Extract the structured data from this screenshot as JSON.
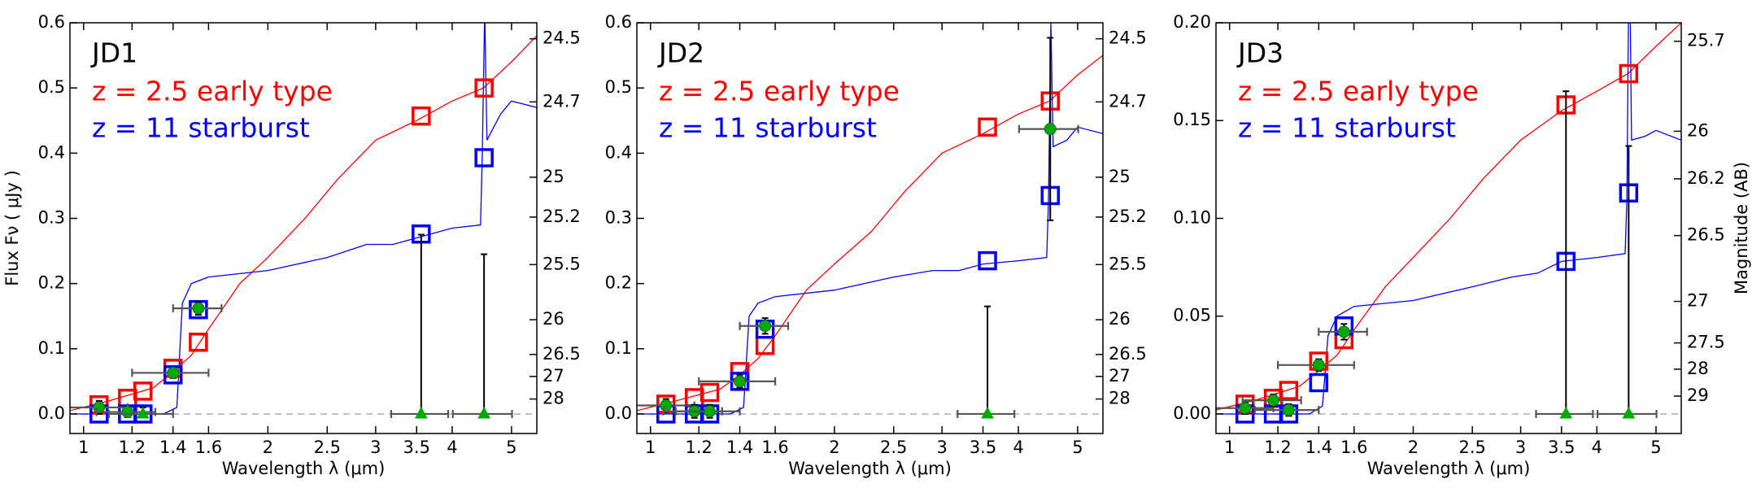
{
  "chart_data": [
    {
      "type": "scatter",
      "label": "JD1",
      "xscale": "log",
      "xlim": [
        0.95,
        5.5
      ],
      "ylim": [
        -0.03,
        0.6
      ],
      "xticks": [
        1,
        1.2,
        1.4,
        1.6,
        2,
        2.5,
        3,
        3.5,
        4,
        5
      ],
      "yticks": [
        {
          "value": 0,
          "label": "0.0"
        },
        0.1,
        0.2,
        0.3,
        0.4,
        0.5,
        0.6
      ],
      "y2ticks": [
        24.5,
        24.7,
        25,
        25.2,
        25.5,
        26,
        26.5,
        27,
        28
      ],
      "ylabel": "Flux  Fν ( μJy )",
      "xlabel": "Wavelength  λ (μm)",
      "zero_line": true,
      "x": [
        1.06,
        1.18,
        1.25,
        1.4,
        1.54,
        3.56,
        4.51
      ],
      "series": [
        {
          "name": "z = 2.5 early type",
          "color": "#ff0000",
          "values": [
            0.014,
            0.024,
            0.035,
            0.07,
            0.11,
            0.457,
            0.5
          ],
          "spectrum": {
            "x": [
              0.95,
              1.1,
              1.3,
              1.4,
              1.5,
              1.6,
              1.8,
              2.0,
              2.3,
              2.6,
              3.0,
              3.5,
              4.0,
              4.5,
              5.0,
              5.5
            ],
            "values": [
              0.005,
              0.02,
              0.04,
              0.065,
              0.09,
              0.13,
              0.2,
              0.24,
              0.3,
              0.36,
              0.42,
              0.45,
              0.48,
              0.5,
              0.54,
              0.58
            ]
          }
        },
        {
          "name": "z = 11 starburst",
          "color": "#0000ff",
          "values": [
            0.0,
            0.0,
            0.0,
            0.06,
            0.16,
            0.276,
            0.393
          ],
          "spectrum": {
            "x": [
              0.95,
              1.35,
              1.42,
              1.45,
              1.5,
              1.6,
              2.0,
              2.5,
              2.9,
              3.2,
              3.5,
              4.0,
              4.45,
              4.48,
              4.52,
              4.56,
              4.8,
              5.0,
              5.5
            ],
            "values": [
              0,
              0,
              0.01,
              0.17,
              0.2,
              0.21,
              0.22,
              0.24,
              0.26,
              0.26,
              0.27,
              0.285,
              0.29,
              0.4,
              0.62,
              0.42,
              0.46,
              0.48,
              0.47
            ]
          }
        }
      ],
      "observed": {
        "color": "#00aa00",
        "values": [
          0.01,
          0.003,
          0,
          0.063,
          0.162,
          0,
          0
        ],
        "yerr": [
          0.01,
          0.008,
          0.01,
          0.008,
          0.01,
          0.275,
          0.245
        ],
        "xerr": [
          0.12,
          0.13,
          0.15,
          0.2,
          0.14,
          0.38,
          0.5
        ],
        "markers": [
          "circle",
          "circle",
          "triangle",
          "circle",
          "circle",
          "triangle",
          "triangle"
        ]
      }
    },
    {
      "type": "scatter",
      "label": "JD2",
      "xscale": "log",
      "xlim": [
        0.95,
        5.5
      ],
      "ylim": [
        -0.03,
        0.6
      ],
      "xticks": [
        1,
        1.2,
        1.4,
        1.6,
        2,
        2.5,
        3,
        3.5,
        4,
        5
      ],
      "yticks": [
        {
          "value": 0,
          "label": "0.0"
        },
        0.1,
        0.2,
        0.3,
        0.4,
        0.5,
        0.6
      ],
      "y2ticks": [
        24.5,
        24.7,
        25,
        25.2,
        25.5,
        26,
        26.5,
        27,
        28
      ],
      "xlabel": "Wavelength  λ (μm)",
      "zero_line": true,
      "x": [
        1.06,
        1.18,
        1.25,
        1.4,
        1.54,
        3.56,
        4.51
      ],
      "series": [
        {
          "name": "z = 2.5 early type",
          "color": "#ff0000",
          "values": [
            0.015,
            0.025,
            0.033,
            0.065,
            0.105,
            0.44,
            0.48
          ],
          "spectrum": {
            "x": [
              0.95,
              1.1,
              1.3,
              1.4,
              1.5,
              1.6,
              1.8,
              2.0,
              2.3,
              2.6,
              3.0,
              3.5,
              4.0,
              4.5,
              5.0,
              5.5
            ],
            "values": [
              0.005,
              0.02,
              0.038,
              0.06,
              0.085,
              0.12,
              0.19,
              0.23,
              0.28,
              0.34,
              0.4,
              0.43,
              0.46,
              0.48,
              0.52,
              0.55
            ]
          }
        },
        {
          "name": "z = 11 starburst",
          "color": "#0000ff",
          "values": [
            0.0,
            0.0,
            0.0,
            0.05,
            0.13,
            0.235,
            0.335
          ],
          "spectrum": {
            "x": [
              0.95,
              1.35,
              1.42,
              1.45,
              1.5,
              1.6,
              2.0,
              2.5,
              2.9,
              3.2,
              3.5,
              4.0,
              4.45,
              4.48,
              4.52,
              4.56,
              4.8,
              5.0,
              5.5
            ],
            "values": [
              0,
              0,
              0.01,
              0.15,
              0.17,
              0.18,
              0.19,
              0.21,
              0.22,
              0.22,
              0.23,
              0.235,
              0.24,
              0.33,
              0.6,
              0.41,
              0.42,
              0.44,
              0.43
            ]
          }
        }
      ],
      "observed": {
        "color": "#00aa00",
        "values": [
          0.013,
          0.004,
          0.004,
          0.05,
          0.135,
          0,
          0.437
        ],
        "yerr": [
          0.01,
          0.01,
          0.01,
          0.01,
          0.012,
          0.165,
          0.14
        ],
        "xerr": [
          0.12,
          0.13,
          0.15,
          0.2,
          0.14,
          0.38,
          0.5
        ],
        "markers": [
          "circle",
          "circle",
          "circle",
          "circle",
          "circle",
          "triangle",
          "circle"
        ]
      }
    },
    {
      "type": "scatter",
      "label": "JD3",
      "xscale": "log",
      "xlim": [
        0.95,
        5.5
      ],
      "ylim": [
        -0.01,
        0.2
      ],
      "xticks": [
        1,
        1.2,
        1.4,
        1.6,
        2,
        2.5,
        3,
        3.5,
        4,
        5
      ],
      "yticks": [
        {
          "value": 0,
          "label": "0.00"
        },
        0.05,
        {
          "value": 0.1,
          "label": "0.10"
        },
        0.15,
        {
          "value": 0.2,
          "label": "0.20"
        }
      ],
      "y2ticks": [
        25.7,
        26,
        26.2,
        26.5,
        27,
        27.5,
        28,
        29
      ],
      "y2label": "Magnitude (AB)",
      "xlabel": "Wavelength  λ (μm)",
      "zero_line": true,
      "x": [
        1.06,
        1.18,
        1.25,
        1.4,
        1.54,
        3.56,
        4.51
      ],
      "series": [
        {
          "name": "z = 2.5 early type",
          "color": "#ff0000",
          "values": [
            0.005,
            0.008,
            0.012,
            0.027,
            0.038,
            0.158,
            0.174
          ],
          "spectrum": {
            "x": [
              0.95,
              1.1,
              1.3,
              1.4,
              1.5,
              1.6,
              1.8,
              2.0,
              2.3,
              2.6,
              3.0,
              3.5,
              4.0,
              4.5,
              5.0,
              5.5
            ],
            "values": [
              0.002,
              0.007,
              0.014,
              0.022,
              0.03,
              0.043,
              0.065,
              0.08,
              0.1,
              0.12,
              0.14,
              0.155,
              0.165,
              0.174,
              0.188,
              0.2
            ]
          }
        },
        {
          "name": "z = 11 starburst",
          "color": "#0000ff",
          "values": [
            0.0,
            0.0,
            0.0,
            0.016,
            0.045,
            0.078,
            0.113
          ],
          "spectrum": {
            "x": [
              0.95,
              1.35,
              1.42,
              1.45,
              1.5,
              1.6,
              2.0,
              2.5,
              2.9,
              3.2,
              3.5,
              4.0,
              4.45,
              4.48,
              4.52,
              4.56,
              4.8,
              5.0,
              5.5
            ],
            "values": [
              0,
              0,
              0.004,
              0.04,
              0.05,
              0.055,
              0.058,
              0.065,
              0.07,
              0.072,
              0.078,
              0.08,
              0.082,
              0.11,
              0.25,
              0.14,
              0.142,
              0.145,
              0.14
            ]
          }
        }
      ],
      "observed": {
        "color": "#00aa00",
        "values": [
          0.003,
          0.007,
          0.002,
          0.025,
          0.042,
          0,
          0
        ],
        "yerr": [
          0.003,
          0.003,
          0.003,
          0.003,
          0.004,
          0.165,
          0.137
        ],
        "xerr": [
          0.12,
          0.13,
          0.15,
          0.2,
          0.14,
          0.38,
          0.5
        ],
        "markers": [
          "circle",
          "circle",
          "circle",
          "circle",
          "circle",
          "triangle",
          "triangle"
        ]
      }
    }
  ]
}
